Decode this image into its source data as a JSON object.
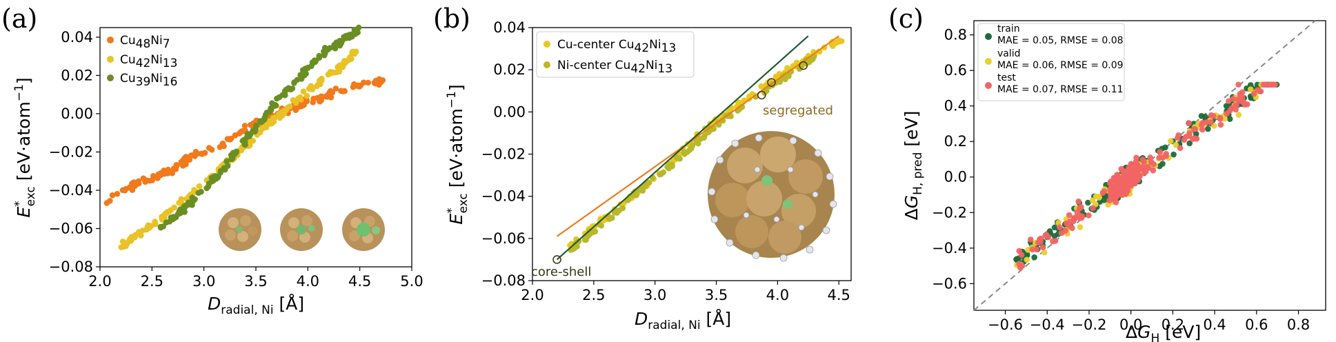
{
  "figure": {
    "panels": [
      "(a)",
      "(b)",
      "(c)"
    ]
  },
  "chart_data": [
    {
      "panel": "(a)",
      "type": "scatter",
      "xlabel": "D_radial, Ni [Å]",
      "ylabel": "E*_exc [eV·atom⁻¹]",
      "xlim": [
        2.0,
        5.0
      ],
      "ylim": [
        -0.08,
        0.045
      ],
      "xticks": [
        "2.0",
        "2.5",
        "3.0",
        "3.5",
        "4.0",
        "4.5",
        "5.0"
      ],
      "yticks": [
        "−0.08",
        "−0.06",
        "−0.04",
        "−0.02",
        "0.00",
        "0.02",
        "0.04"
      ],
      "legend_position": "top-left",
      "grid": false,
      "series": [
        {
          "name": "Cu48Ni7",
          "color": "#f07a1c",
          "trend": [
            [
              2.05,
              -0.046
            ],
            [
              2.3,
              -0.038
            ],
            [
              2.6,
              -0.032
            ],
            [
              2.9,
              -0.022
            ],
            [
              3.2,
              -0.015
            ],
            [
              3.5,
              -0.005
            ],
            [
              3.8,
              0.002
            ],
            [
              4.1,
              0.008
            ],
            [
              4.4,
              0.014
            ],
            [
              4.75,
              0.017
            ]
          ]
        },
        {
          "name": "Cu42Ni13",
          "color": "#e8c227",
          "trend": [
            [
              2.2,
              -0.069
            ],
            [
              2.5,
              -0.058
            ],
            [
              2.8,
              -0.046
            ],
            [
              3.1,
              -0.032
            ],
            [
              3.4,
              -0.016
            ],
            [
              3.7,
              -0.002
            ],
            [
              4.0,
              0.012
            ],
            [
              4.3,
              0.024
            ],
            [
              4.5,
              0.034
            ]
          ]
        },
        {
          "name": "Cu39Ni16",
          "color": "#6b8e23",
          "trend": [
            [
              2.55,
              -0.061
            ],
            [
              2.8,
              -0.05
            ],
            [
              3.0,
              -0.04
            ],
            [
              3.2,
              -0.028
            ],
            [
              3.4,
              -0.014
            ],
            [
              3.6,
              0.0
            ],
            [
              3.8,
              0.012
            ],
            [
              4.0,
              0.024
            ],
            [
              4.2,
              0.034
            ],
            [
              4.5,
              0.044
            ]
          ]
        }
      ]
    },
    {
      "panel": "(b)",
      "type": "scatter",
      "xlabel": "D_radial, Ni [Å]",
      "ylabel": "E*_exc [eV·atom⁻¹]",
      "xlim": [
        2.0,
        4.6
      ],
      "ylim": [
        -0.08,
        0.04
      ],
      "xticks": [
        "2.0",
        "2.5",
        "3.0",
        "3.5",
        "4.0",
        "4.5"
      ],
      "yticks": [
        "−0.08",
        "−0.06",
        "−0.04",
        "−0.02",
        "0.00",
        "0.02",
        "0.04"
      ],
      "legend_position": "top-left",
      "grid": false,
      "series": [
        {
          "name": "Cu-center Cu42Ni13",
          "color": "#e8c820",
          "trend": [
            [
              2.3,
              -0.064
            ],
            [
              2.6,
              -0.05
            ],
            [
              2.9,
              -0.036
            ],
            [
              3.2,
              -0.02
            ],
            [
              3.5,
              -0.004
            ],
            [
              3.8,
              0.008
            ],
            [
              4.1,
              0.02
            ],
            [
              4.3,
              0.028
            ],
            [
              4.55,
              0.035
            ]
          ]
        },
        {
          "name": "Ni-center Cu42Ni13",
          "color": "#b8b82a",
          "trend": [
            [
              2.3,
              -0.066
            ],
            [
              2.6,
              -0.052
            ],
            [
              2.9,
              -0.036
            ],
            [
              3.2,
              -0.022
            ],
            [
              3.5,
              -0.006
            ],
            [
              3.8,
              0.006
            ],
            [
              4.1,
              0.018
            ],
            [
              4.35,
              0.028
            ]
          ]
        }
      ],
      "fit_lines": [
        {
          "color": "#f07a1c",
          "points": [
            [
              2.2,
              -0.059
            ],
            [
              4.5,
              0.036
            ]
          ]
        },
        {
          "color": "#1e5c2e",
          "points": [
            [
              2.2,
              -0.07
            ],
            [
              4.25,
              0.036
            ]
          ]
        }
      ],
      "highlighted_points": [
        [
          2.2,
          -0.07
        ],
        [
          3.87,
          0.008
        ],
        [
          3.95,
          0.014
        ],
        [
          4.21,
          0.022
        ]
      ],
      "annotations": [
        "segregated",
        "core-shell"
      ]
    },
    {
      "panel": "(c)",
      "type": "scatter",
      "xlabel": "ΔG_H [eV]",
      "ylabel": "ΔG_H, pred [eV]",
      "xlim": [
        -0.75,
        0.93
      ],
      "ylim": [
        -0.75,
        0.88
      ],
      "xticks": [
        "−0.6",
        "−0.4",
        "−0.2",
        "0.0",
        "0.2",
        "0.4",
        "0.6",
        "0.8"
      ],
      "yticks": [
        "−0.6",
        "−0.4",
        "−0.2",
        "0.0",
        "0.2",
        "0.4",
        "0.6",
        "0.8"
      ],
      "legend_position": "top-left",
      "grid": false,
      "series": [
        {
          "name": "train",
          "stats": "MAE = 0.05, RMSE = 0.08",
          "color": "#1e6b3a"
        },
        {
          "name": "valid",
          "stats": "MAE = 0.06, RMSE = 0.09",
          "color": "#e8d030"
        },
        {
          "name": "test",
          "stats": "MAE = 0.07, RMSE = 0.11",
          "color": "#f26464"
        }
      ],
      "parity_line": [
        [
          -0.75,
          -0.75
        ],
        [
          0.88,
          0.88
        ]
      ]
    }
  ]
}
